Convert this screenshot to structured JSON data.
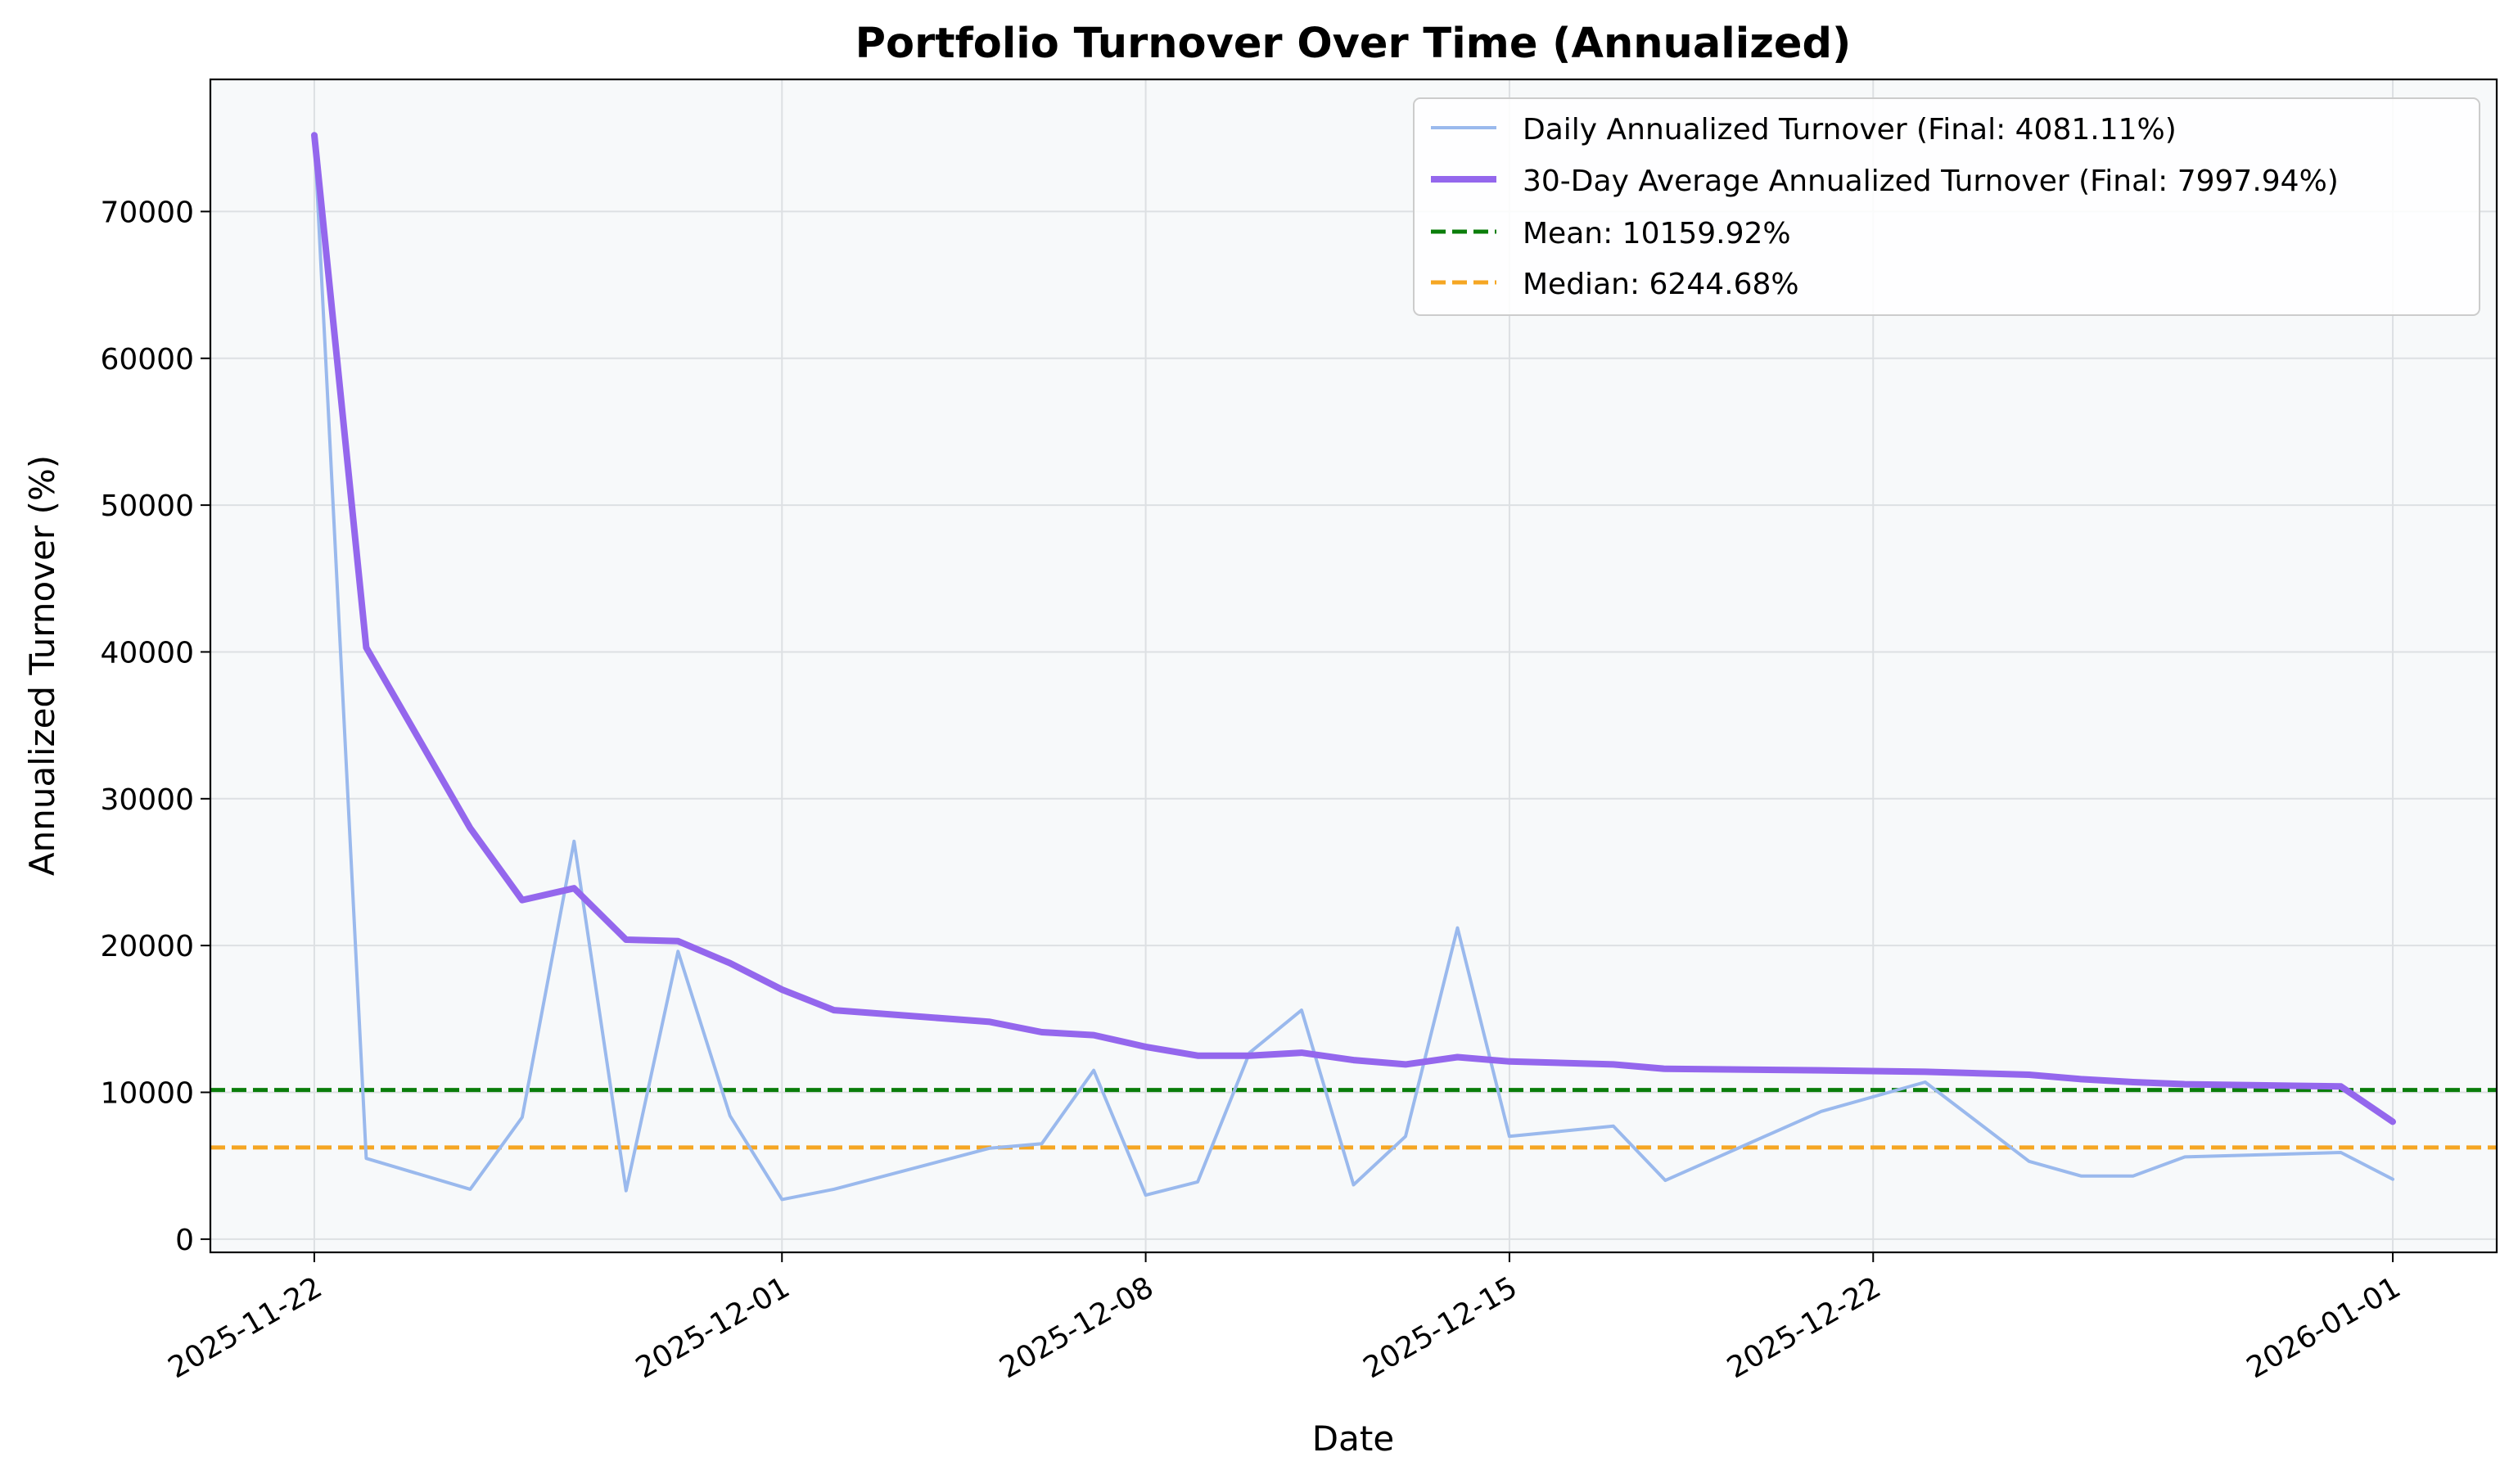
{
  "chart_data": {
    "type": "line",
    "title": "Portfolio Turnover Over Time (Annualized)",
    "xlabel": "Date",
    "ylabel": "Annualized Turnover (%)",
    "grid": true,
    "legend_position": "top-right",
    "x_range": [
      "2025-11-20",
      "2026-01-03"
    ],
    "ylim": [
      -900,
      79000
    ],
    "x_ticks": [
      {
        "date": "2025-11-22",
        "label": "2025-11-22"
      },
      {
        "date": "2025-12-01",
        "label": "2025-12-01"
      },
      {
        "date": "2025-12-08",
        "label": "2025-12-08"
      },
      {
        "date": "2025-12-15",
        "label": "2025-12-15"
      },
      {
        "date": "2025-12-22",
        "label": "2025-12-22"
      },
      {
        "date": "2026-01-01",
        "label": "2026-01-01"
      }
    ],
    "y_ticks": [
      {
        "value": 0,
        "label": "0"
      },
      {
        "value": 10000,
        "label": "10000"
      },
      {
        "value": 20000,
        "label": "20000"
      },
      {
        "value": 30000,
        "label": "30000"
      },
      {
        "value": 40000,
        "label": "40000"
      },
      {
        "value": 50000,
        "label": "50000"
      },
      {
        "value": 60000,
        "label": "60000"
      },
      {
        "value": 70000,
        "label": "70000"
      }
    ],
    "series": [
      {
        "name": "Daily Annualized Turnover (Final: 4081.11%)",
        "color": "#9ab9ed",
        "line_style": "solid",
        "emphasis": "thin",
        "points": [
          {
            "date": "2025-11-22",
            "value": 75200
          },
          {
            "date": "2025-11-23",
            "value": 5500
          },
          {
            "date": "2025-11-25",
            "value": 3400
          },
          {
            "date": "2025-11-26",
            "value": 8300
          },
          {
            "date": "2025-11-27",
            "value": 27100
          },
          {
            "date": "2025-11-28",
            "value": 3300
          },
          {
            "date": "2025-11-29",
            "value": 19600
          },
          {
            "date": "2025-11-30",
            "value": 8400
          },
          {
            "date": "2025-12-01",
            "value": 2700
          },
          {
            "date": "2025-12-02",
            "value": 3400
          },
          {
            "date": "2025-12-05",
            "value": 6200
          },
          {
            "date": "2025-12-06",
            "value": 6500
          },
          {
            "date": "2025-12-07",
            "value": 11500
          },
          {
            "date": "2025-12-08",
            "value": 3000
          },
          {
            "date": "2025-12-09",
            "value": 3900
          },
          {
            "date": "2025-12-10",
            "value": 12700
          },
          {
            "date": "2025-12-11",
            "value": 15600
          },
          {
            "date": "2025-12-12",
            "value": 3700
          },
          {
            "date": "2025-12-13",
            "value": 7000
          },
          {
            "date": "2025-12-14",
            "value": 21200
          },
          {
            "date": "2025-12-15",
            "value": 7000
          },
          {
            "date": "2025-12-17",
            "value": 7700
          },
          {
            "date": "2025-12-18",
            "value": 4000
          },
          {
            "date": "2025-12-21",
            "value": 8700
          },
          {
            "date": "2025-12-23",
            "value": 10700
          },
          {
            "date": "2025-12-25",
            "value": 5300
          },
          {
            "date": "2025-12-26",
            "value": 4300
          },
          {
            "date": "2025-12-27",
            "value": 4300
          },
          {
            "date": "2025-12-28",
            "value": 5600
          },
          {
            "date": "2025-12-31",
            "value": 5900
          },
          {
            "date": "2026-01-01",
            "value": 4081.11
          }
        ]
      },
      {
        "name": "30-Day Average Annualized Turnover (Final: 7997.94%)",
        "color": "#9467ed",
        "line_style": "solid",
        "emphasis": "thick",
        "points": [
          {
            "date": "2025-11-22",
            "value": 75200
          },
          {
            "date": "2025-11-23",
            "value": 40300
          },
          {
            "date": "2025-11-25",
            "value": 28000
          },
          {
            "date": "2025-11-26",
            "value": 23100
          },
          {
            "date": "2025-11-27",
            "value": 23900
          },
          {
            "date": "2025-11-28",
            "value": 20400
          },
          {
            "date": "2025-11-29",
            "value": 20300
          },
          {
            "date": "2025-11-30",
            "value": 18800
          },
          {
            "date": "2025-12-01",
            "value": 17000
          },
          {
            "date": "2025-12-02",
            "value": 15600
          },
          {
            "date": "2025-12-05",
            "value": 14800
          },
          {
            "date": "2025-12-06",
            "value": 14100
          },
          {
            "date": "2025-12-07",
            "value": 13900
          },
          {
            "date": "2025-12-08",
            "value": 13100
          },
          {
            "date": "2025-12-09",
            "value": 12500
          },
          {
            "date": "2025-12-10",
            "value": 12500
          },
          {
            "date": "2025-12-11",
            "value": 12700
          },
          {
            "date": "2025-12-12",
            "value": 12200
          },
          {
            "date": "2025-12-13",
            "value": 11900
          },
          {
            "date": "2025-12-14",
            "value": 12400
          },
          {
            "date": "2025-12-15",
            "value": 12100
          },
          {
            "date": "2025-12-17",
            "value": 11900
          },
          {
            "date": "2025-12-18",
            "value": 11600
          },
          {
            "date": "2025-12-21",
            "value": 11500
          },
          {
            "date": "2025-12-23",
            "value": 11400
          },
          {
            "date": "2025-12-25",
            "value": 11200
          },
          {
            "date": "2025-12-26",
            "value": 10900
          },
          {
            "date": "2025-12-27",
            "value": 10700
          },
          {
            "date": "2025-12-28",
            "value": 10550
          },
          {
            "date": "2025-12-31",
            "value": 10400
          },
          {
            "date": "2026-01-01",
            "value": 7997.94
          }
        ]
      }
    ],
    "reference_lines": [
      {
        "name": "Mean: 10159.92%",
        "value": 10159.92,
        "color": "#0a7d0a",
        "line_style": "dashed"
      },
      {
        "name": "Median: 6244.68%",
        "value": 6244.68,
        "color": "#f5a623",
        "line_style": "dashed"
      }
    ]
  }
}
